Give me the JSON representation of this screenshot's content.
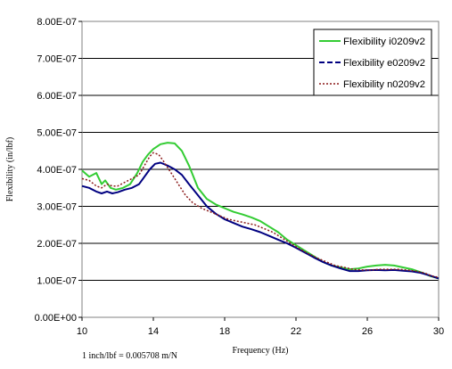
{
  "chart_data": {
    "type": "line",
    "title": "",
    "xlabel": "Frequency (Hz)",
    "ylabel": "Flexibility (in/lbf)",
    "xlim": [
      10,
      30
    ],
    "ylim": [
      0,
      8e-07
    ],
    "xticks": [
      "10",
      "14",
      "18",
      "22",
      "26",
      "30"
    ],
    "xtick_values": [
      10,
      14,
      18,
      22,
      26,
      30
    ],
    "yticks": [
      "0.00E+00",
      "1.00E-07",
      "2.00E-07",
      "3.00E-07",
      "4.00E-07",
      "5.00E-07",
      "6.00E-07",
      "7.00E-07",
      "8.00E-07"
    ],
    "ytick_values": [
      0,
      1e-07,
      2e-07,
      3e-07,
      4e-07,
      5e-07,
      6e-07,
      7e-07,
      8e-07
    ],
    "grid": "horizontal",
    "legend_position": "top-right",
    "note": "1 inch/lbf = 0.005708 m/N",
    "series": [
      {
        "name": "Flexibility i0209v2",
        "color": "#33cc33",
        "style": "solid",
        "x": [
          10,
          10.4,
          10.8,
          11.1,
          11.3,
          11.6,
          11.9,
          12.3,
          12.7,
          13.1,
          13.4,
          13.7,
          14.0,
          14.4,
          14.8,
          15.2,
          15.6,
          16.0,
          16.5,
          17.0,
          17.5,
          18.0,
          18.5,
          19.0,
          19.5,
          20.0,
          20.5,
          21.0,
          21.5,
          22.0,
          22.5,
          23.0,
          23.5,
          24.0,
          24.5,
          25.0,
          25.5,
          26.0,
          26.5,
          27.0,
          27.5,
          28.0,
          28.5,
          29.0,
          29.5,
          30.0
        ],
        "y": [
          3.97e-07,
          3.8e-07,
          3.9e-07,
          3.6e-07,
          3.7e-07,
          3.5e-07,
          3.45e-07,
          3.5e-07,
          3.6e-07,
          3.9e-07,
          4.2e-07,
          4.4e-07,
          4.55e-07,
          4.68e-07,
          4.72e-07,
          4.7e-07,
          4.5e-07,
          4.1e-07,
          3.5e-07,
          3.2e-07,
          3.05e-07,
          2.95e-07,
          2.85e-07,
          2.78e-07,
          2.7e-07,
          2.6e-07,
          2.45e-07,
          2.3e-07,
          2.1e-07,
          1.95e-07,
          1.8e-07,
          1.65e-07,
          1.5e-07,
          1.4e-07,
          1.35e-07,
          1.3e-07,
          1.32e-07,
          1.37e-07,
          1.4e-07,
          1.42e-07,
          1.4e-07,
          1.35e-07,
          1.3e-07,
          1.22e-07,
          1.12e-07,
          1.05e-07
        ]
      },
      {
        "name": "Flexibility e0209v2",
        "color": "#000080",
        "style": "solid",
        "x": [
          10,
          10.4,
          10.8,
          11.1,
          11.4,
          11.7,
          12.0,
          12.4,
          12.8,
          13.2,
          13.5,
          13.8,
          14.1,
          14.4,
          14.8,
          15.2,
          15.6,
          16.0,
          16.5,
          17.0,
          17.5,
          18.0,
          18.5,
          19.0,
          19.5,
          20.0,
          20.5,
          21.0,
          21.5,
          22.0,
          22.5,
          23.0,
          23.5,
          24.0,
          24.5,
          25.0,
          25.5,
          26.0,
          26.5,
          27.0,
          27.5,
          28.0,
          28.5,
          29.0,
          29.5,
          30.0
        ],
        "y": [
          3.55e-07,
          3.5e-07,
          3.4e-07,
          3.35e-07,
          3.4e-07,
          3.35e-07,
          3.38e-07,
          3.45e-07,
          3.5e-07,
          3.6e-07,
          3.8e-07,
          4e-07,
          4.15e-07,
          4.18e-07,
          4.1e-07,
          4e-07,
          3.85e-07,
          3.6e-07,
          3.3e-07,
          3e-07,
          2.8e-07,
          2.65e-07,
          2.55e-07,
          2.45e-07,
          2.38e-07,
          2.3e-07,
          2.2e-07,
          2.1e-07,
          2e-07,
          1.88e-07,
          1.75e-07,
          1.62e-07,
          1.5e-07,
          1.4e-07,
          1.32e-07,
          1.25e-07,
          1.25e-07,
          1.27e-07,
          1.28e-07,
          1.27e-07,
          1.28e-07,
          1.26e-07,
          1.24e-07,
          1.2e-07,
          1.13e-07,
          1.05e-07
        ]
      },
      {
        "name": "Flexibility n0209v2",
        "color": "#8b1a1a",
        "style": "dotted",
        "x": [
          10,
          10.4,
          10.8,
          11.1,
          11.4,
          11.7,
          12.0,
          12.4,
          12.8,
          13.2,
          13.5,
          13.8,
          14.0,
          14.3,
          14.6,
          15.0,
          15.4,
          15.8,
          16.2,
          16.7,
          17.2,
          17.7,
          18.2,
          18.7,
          19.2,
          19.7,
          20.2,
          20.7,
          21.2,
          21.7,
          22.2,
          22.7,
          23.2,
          23.7,
          24.2,
          24.7,
          25.2,
          25.7,
          26.2,
          26.7,
          27.2,
          27.7,
          28.2,
          28.7,
          29.2,
          29.6,
          30.0
        ],
        "y": [
          3.75e-07,
          3.7e-07,
          3.55e-07,
          3.5e-07,
          3.6e-07,
          3.55e-07,
          3.55e-07,
          3.65e-07,
          3.75e-07,
          3.85e-07,
          4.1e-07,
          4.35e-07,
          4.45e-07,
          4.4e-07,
          4.2e-07,
          3.9e-07,
          3.6e-07,
          3.3e-07,
          3.1e-07,
          2.95e-07,
          2.85e-07,
          2.75e-07,
          2.65e-07,
          2.6e-07,
          2.55e-07,
          2.5e-07,
          2.4e-07,
          2.3e-07,
          2.15e-07,
          2e-07,
          1.85e-07,
          1.72e-07,
          1.6e-07,
          1.5e-07,
          1.4e-07,
          1.35e-07,
          1.3e-07,
          1.28e-07,
          1.28e-07,
          1.3e-07,
          1.3e-07,
          1.3e-07,
          1.28e-07,
          1.25e-07,
          1.2e-07,
          1.12e-07,
          1.08e-07
        ]
      }
    ]
  }
}
